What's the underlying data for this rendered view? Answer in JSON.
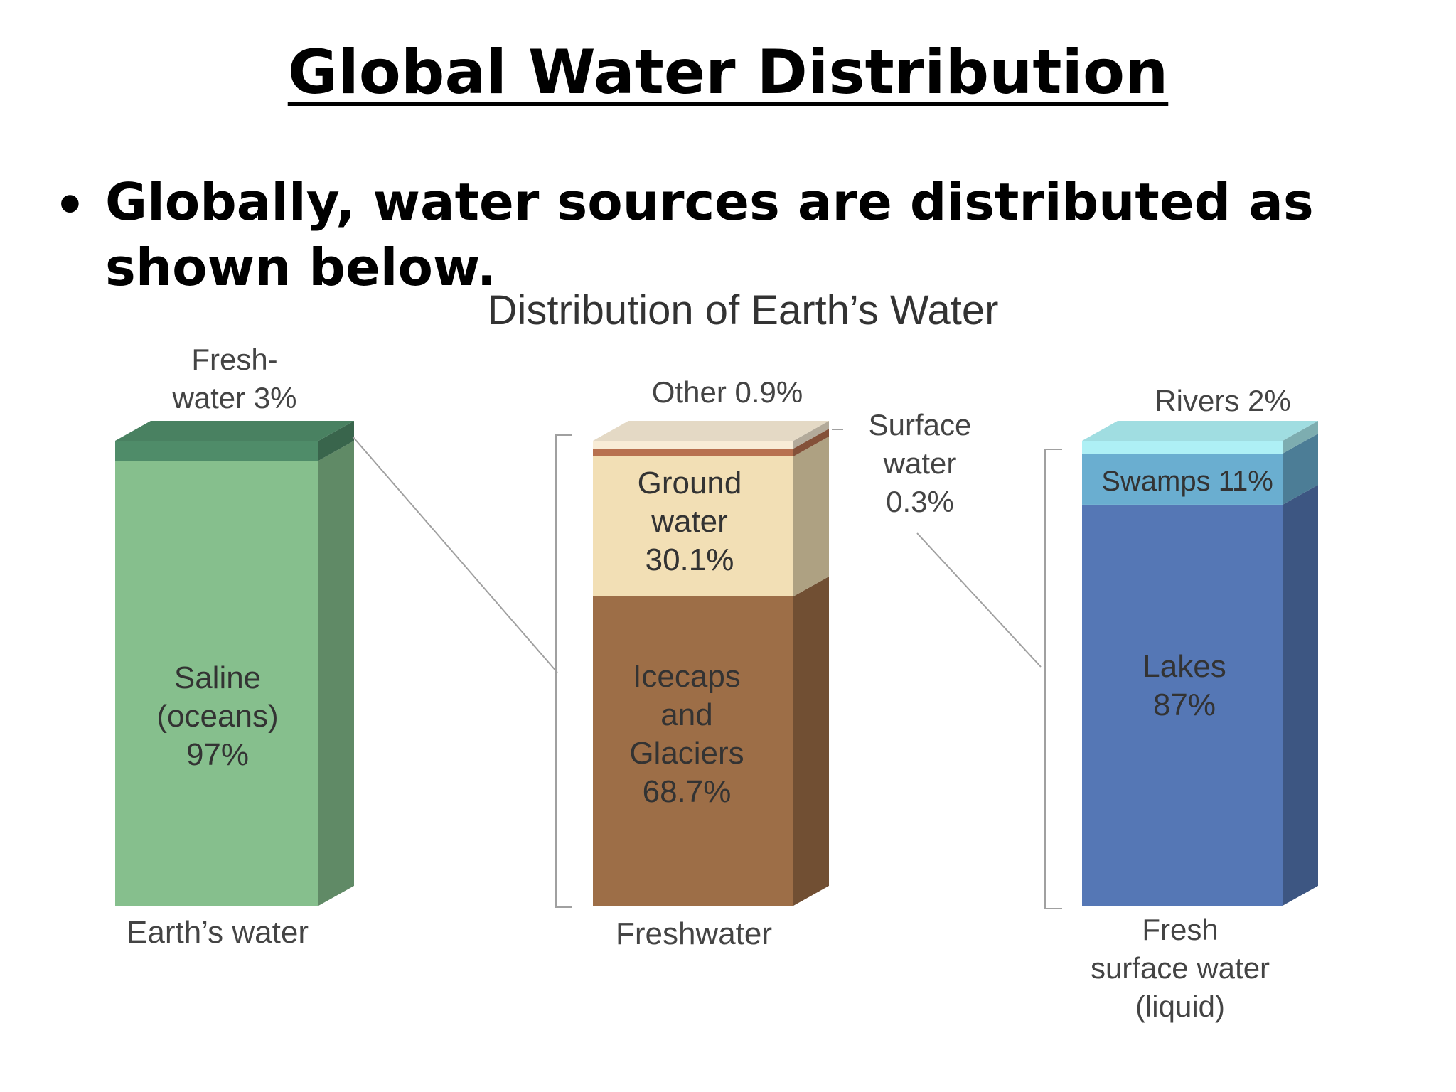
{
  "slide": {
    "title": "Global Water Distribution",
    "bullet": "Globally, water sources are distributed as shown below."
  },
  "chart_data": {
    "type": "bar",
    "title": "Distribution of Earth’s Water",
    "stacked": true,
    "columns": [
      {
        "name": "Earth’s water",
        "segments": [
          {
            "label": "Saline (oceans) 97%",
            "value": 97,
            "color": "#86bf8d"
          },
          {
            "label": "Fresh-water 3%",
            "value": 3,
            "color": "#4f8c69"
          }
        ]
      },
      {
        "name": "Freshwater",
        "segments": [
          {
            "label": "Icecaps and Glaciers 68.7%",
            "value": 68.7,
            "color": "#9d6e47"
          },
          {
            "label": "Ground water 30.1%",
            "value": 30.1,
            "color": "#f2dfb5"
          },
          {
            "label": "Surface water 0.3%",
            "value": 0.3,
            "color": "#b8714f"
          },
          {
            "label": "Other 0.9%",
            "value": 0.9,
            "color": "#f8ecd6"
          }
        ]
      },
      {
        "name": "Fresh surface water (liquid)",
        "segments": [
          {
            "label": "Lakes 87%",
            "value": 87,
            "color": "#5577b5"
          },
          {
            "label": "Swamps 11%",
            "value": 11,
            "color": "#6aaed0"
          },
          {
            "label": "Rivers 2%",
            "value": 2,
            "color": "#aef0f5"
          }
        ]
      }
    ],
    "labels": {
      "saline": [
        "Saline",
        "(oceans)",
        "97%"
      ],
      "fresh": [
        "Fresh-",
        "water 3%"
      ],
      "other": "Other 0.9%",
      "surface": [
        "Surface",
        "water",
        "0.3%"
      ],
      "ground": [
        "Ground",
        "water",
        "30.1%"
      ],
      "icecaps": [
        "Icecaps",
        "and",
        "Glaciers",
        "68.7%"
      ],
      "rivers": "Rivers 2%",
      "swamps": "Swamps 11%",
      "lakes": [
        "Lakes",
        "87%"
      ],
      "col1": "Earth’s water",
      "col2": "Freshwater",
      "col3": [
        "Fresh",
        "surface water",
        "(liquid)"
      ]
    }
  }
}
